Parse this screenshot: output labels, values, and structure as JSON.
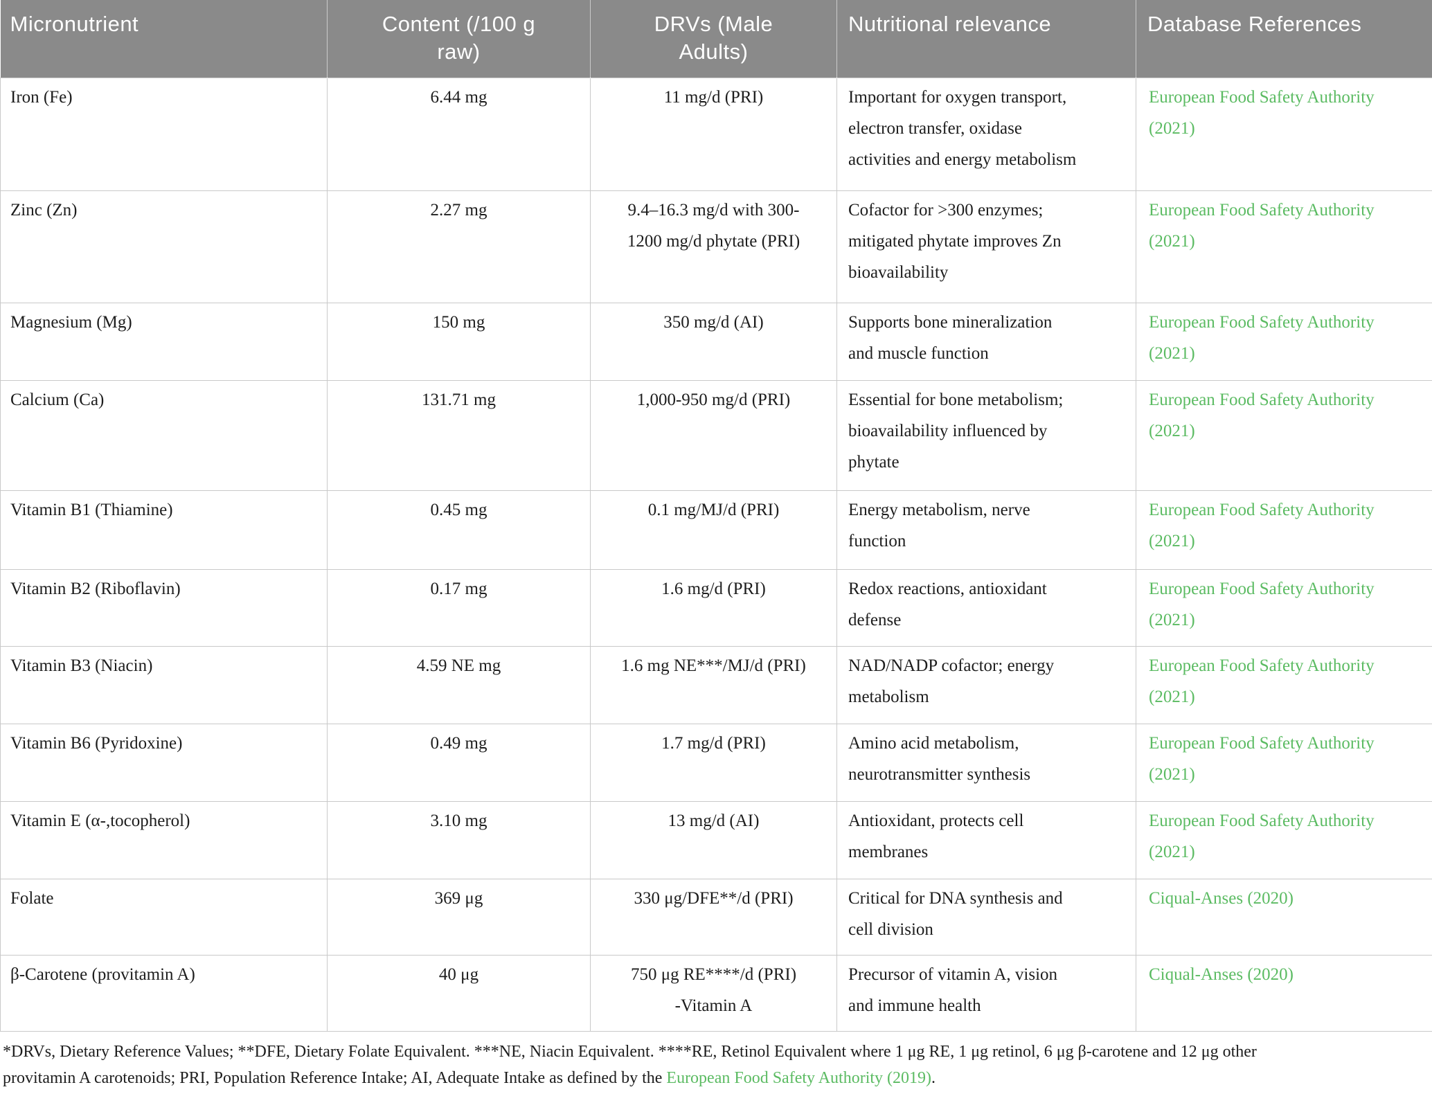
{
  "colors": {
    "header_bg": "#8a8a8a",
    "header_text": "#ffffff",
    "body_text": "#1d1d1d",
    "link_green": "#5bbb62",
    "border": "#c9c9c9"
  },
  "table": {
    "columns": [
      {
        "label": "Micronutrient"
      },
      {
        "label": "Content (/100 g\nraw)"
      },
      {
        "label": "DRVs (Male\nAdults)"
      },
      {
        "label": "Nutritional relevance"
      },
      {
        "label": "Database References"
      }
    ],
    "rows": [
      {
        "micronutrient": "Iron (Fe)",
        "content": "6.44 mg",
        "drv": "11 mg/d (PRI)",
        "relevance": "Important for oxygen transport,\nelectron transfer, oxidase\nactivities and energy metabolism",
        "reference": "European Food Safety Authority\n(2021)"
      },
      {
        "micronutrient": "Zinc (Zn)",
        "content": "2.27 mg",
        "drv": "9.4–16.3 mg/d with 300-\n1200 mg/d phytate (PRI)",
        "relevance": "Cofactor for >300 enzymes;\nmitigated phytate improves Zn\nbioavailability",
        "reference": "European Food Safety Authority\n(2021)"
      },
      {
        "micronutrient": "Magnesium (Mg)",
        "content": "150 mg",
        "drv": "350 mg/d (AI)",
        "relevance": "Supports bone mineralization\nand muscle function",
        "reference": "European Food Safety Authority\n(2021)"
      },
      {
        "micronutrient": "Calcium (Ca)",
        "content": "131.71 mg",
        "drv": "1,000-950 mg/d (PRI)",
        "relevance": "Essential for bone metabolism;\nbioavailability influenced by\nphytate",
        "reference": "European Food Safety Authority\n(2021)"
      },
      {
        "micronutrient": "Vitamin B1 (Thiamine)",
        "content": "0.45 mg",
        "drv": "0.1 mg/MJ/d (PRI)",
        "relevance": "Energy metabolism, nerve\nfunction",
        "reference": "European Food Safety Authority\n(2021)"
      },
      {
        "micronutrient": "Vitamin B2 (Riboflavin)",
        "content": "0.17 mg",
        "drv": "1.6 mg/d (PRI)",
        "relevance": "Redox reactions, antioxidant\ndefense",
        "reference": "European Food Safety Authority\n(2021)"
      },
      {
        "micronutrient": "Vitamin B3 (Niacin)",
        "content": "4.59 NE mg",
        "drv": "1.6 mg NE***/MJ/d (PRI)",
        "relevance": "NAD/NADP cofactor; energy\nmetabolism",
        "reference": "European Food Safety Authority\n(2021)"
      },
      {
        "micronutrient": "Vitamin B6 (Pyridoxine)",
        "content": "0.49 mg",
        "drv": "1.7 mg/d (PRI)",
        "relevance": "Amino acid metabolism,\nneurotransmitter synthesis",
        "reference": "European Food Safety Authority\n(2021)"
      },
      {
        "micronutrient": "Vitamin E (α-,tocopherol)",
        "content": "3.10 mg",
        "drv": "13 mg/d (AI)",
        "relevance": "Antioxidant, protects cell\nmembranes",
        "reference": "European Food Safety Authority\n(2021)"
      },
      {
        "micronutrient": "Folate",
        "content": "369 μg",
        "drv": "330 μg/DFE**/d (PRI)",
        "relevance": "Critical for DNA synthesis and\ncell division",
        "reference": "Ciqual-Anses (2020)"
      },
      {
        "micronutrient": "β-Carotene (provitamin A)",
        "content": "40 μg",
        "drv": "750 μg RE****/d (PRI)\n-Vitamin A",
        "relevance": "Precursor of vitamin A, vision\nand immune health",
        "reference": "Ciqual-Anses (2020)"
      }
    ]
  },
  "footnote": {
    "text_before_link": "*DRVs, Dietary Reference Values; **DFE, Dietary Folate Equivalent. ***NE, Niacin Equivalent. ****RE, Retinol Equivalent where 1 μg RE, 1 μg retinol, 6 μg β-carotene and 12 μg other\nprovitamin A carotenoids; PRI, Population Reference Intake; AI, Adequate Intake as defined by the ",
    "link_text": "European Food Safety Authority (2019)",
    "text_after_link": "."
  }
}
